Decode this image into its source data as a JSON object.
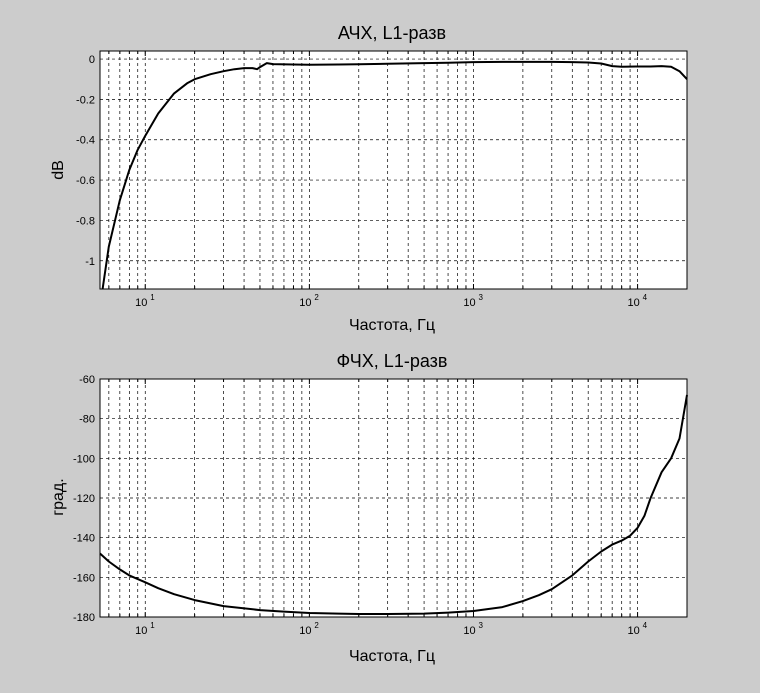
{
  "chart_data": [
    {
      "type": "line",
      "title": "АЧХ, L1-разв",
      "xlabel": "Частота, Гц",
      "ylabel": "dB",
      "xscale": "log",
      "xlim": [
        5.3,
        20000
      ],
      "ylim": [
        -1.14,
        0.04
      ],
      "grid": true,
      "xticks": [
        {
          "base": "10",
          "exp": "1",
          "value": 10
        },
        {
          "base": "10",
          "exp": "2",
          "value": 100
        },
        {
          "base": "10",
          "exp": "3",
          "value": 1000
        },
        {
          "base": "10",
          "exp": "4",
          "value": 10000
        }
      ],
      "yticks": [
        {
          "label": "0",
          "value": 0
        },
        {
          "label": "-0.2",
          "value": -0.2
        },
        {
          "label": "-0.4",
          "value": -0.4
        },
        {
          "label": "-0.6",
          "value": -0.6
        },
        {
          "label": "-0.8",
          "value": -0.8
        },
        {
          "label": "-1",
          "value": -1
        }
      ],
      "series": [
        {
          "x": [
            5.5,
            6,
            7,
            8,
            9,
            10,
            12,
            15,
            18,
            20,
            25,
            30,
            35,
            40,
            45,
            48,
            50,
            55,
            60,
            80,
            100,
            150,
            200,
            300,
            500,
            700,
            1000,
            1500,
            2000,
            3000,
            4000,
            5000,
            6000,
            7000,
            8000,
            10000,
            12000,
            14000,
            16000,
            18000,
            20000
          ],
          "y": [
            -1.14,
            -0.93,
            -0.7,
            -0.55,
            -0.45,
            -0.38,
            -0.27,
            -0.17,
            -0.12,
            -0.1,
            -0.075,
            -0.06,
            -0.05,
            -0.045,
            -0.045,
            -0.05,
            -0.04,
            -0.02,
            -0.025,
            -0.027,
            -0.028,
            -0.027,
            -0.026,
            -0.023,
            -0.02,
            -0.018,
            -0.015,
            -0.014,
            -0.014,
            -0.014,
            -0.015,
            -0.017,
            -0.022,
            -0.035,
            -0.038,
            -0.037,
            -0.037,
            -0.035,
            -0.038,
            -0.06,
            -0.1
          ]
        }
      ]
    },
    {
      "type": "line",
      "title": "ФЧХ, L1-разв",
      "xlabel": "Частота, Гц",
      "ylabel": "град.",
      "xscale": "log",
      "xlim": [
        5.3,
        20000
      ],
      "ylim": [
        -180,
        -60
      ],
      "grid": true,
      "xticks": [
        {
          "base": "10",
          "exp": "1",
          "value": 10
        },
        {
          "base": "10",
          "exp": "2",
          "value": 100
        },
        {
          "base": "10",
          "exp": "3",
          "value": 1000
        },
        {
          "base": "10",
          "exp": "4",
          "value": 10000
        }
      ],
      "yticks": [
        {
          "label": "-60",
          "value": -60
        },
        {
          "label": "-80",
          "value": -80
        },
        {
          "label": "-100",
          "value": -100
        },
        {
          "label": "-120",
          "value": -120
        },
        {
          "label": "-140",
          "value": -140
        },
        {
          "label": "-160",
          "value": -160
        },
        {
          "label": "-180",
          "value": -180
        }
      ],
      "series": [
        {
          "x": [
            5.3,
            6,
            7,
            8,
            10,
            12,
            15,
            20,
            30,
            50,
            70,
            100,
            150,
            200,
            300,
            500,
            700,
            1000,
            1500,
            2000,
            2500,
            3000,
            4000,
            5000,
            6000,
            7000,
            8000,
            9000,
            10000,
            11000,
            12000,
            14000,
            16000,
            18000,
            20000
          ],
          "y": [
            -148,
            -152,
            -156,
            -159,
            -162.5,
            -165.5,
            -168.5,
            -171.5,
            -174.5,
            -176.5,
            -177.3,
            -178,
            -178.3,
            -178.5,
            -178.5,
            -178.3,
            -177.8,
            -177,
            -175,
            -172,
            -169,
            -166,
            -159,
            -152,
            -147,
            -143.5,
            -141.5,
            -139,
            -135,
            -129,
            -120,
            -107,
            -100,
            -90,
            -68
          ]
        }
      ]
    }
  ]
}
